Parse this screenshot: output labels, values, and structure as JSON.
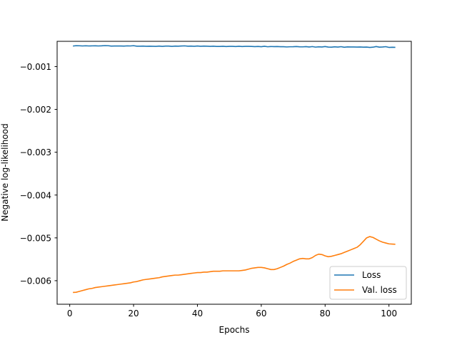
{
  "chart_data": {
    "type": "line",
    "title": "",
    "xlabel": "Epochs",
    "ylabel": "Negative log-likelihood",
    "xlim": [
      -3.95,
      107.0
    ],
    "ylim": [
      -0.00655,
      -0.00041
    ],
    "xticks": [
      0,
      20,
      40,
      60,
      80,
      100
    ],
    "xtick_labels": [
      "0",
      "20",
      "40",
      "60",
      "80",
      "100"
    ],
    "yticks": [
      -0.001,
      -0.002,
      -0.003,
      -0.004,
      -0.005,
      -0.006
    ],
    "ytick_labels": [
      "−0.001",
      "−0.002",
      "−0.003",
      "−0.004",
      "−0.005",
      "−0.006"
    ],
    "grid": false,
    "legend_position": "lower-right",
    "series": [
      {
        "name": "Loss",
        "color": "#1f77b4",
        "x": [
          1,
          2,
          3,
          4,
          5,
          6,
          7,
          8,
          9,
          10,
          11,
          12,
          13,
          14,
          15,
          16,
          17,
          18,
          19,
          20,
          21,
          22,
          23,
          24,
          25,
          26,
          27,
          28,
          29,
          30,
          31,
          32,
          33,
          34,
          35,
          36,
          37,
          38,
          39,
          40,
          41,
          42,
          43,
          44,
          45,
          46,
          47,
          48,
          49,
          50,
          51,
          52,
          53,
          54,
          55,
          56,
          57,
          58,
          59,
          60,
          61,
          62,
          63,
          64,
          65,
          66,
          67,
          68,
          69,
          70,
          71,
          72,
          73,
          74,
          75,
          76,
          77,
          78,
          79,
          80,
          81,
          82,
          83,
          84,
          85,
          86,
          87,
          88,
          89,
          90,
          91,
          92,
          93,
          94,
          95,
          96,
          97,
          98,
          99,
          100,
          101,
          102
        ],
        "y": [
          -0.00052,
          -0.000512,
          -0.000514,
          -0.000518,
          -0.000514,
          -0.000518,
          -0.000516,
          -0.000515,
          -0.000518,
          -0.000515,
          -0.00051,
          -0.000512,
          -0.000522,
          -0.00052,
          -0.000518,
          -0.00052,
          -0.000522,
          -0.000516,
          -0.000518,
          -0.000512,
          -0.000524,
          -0.000524,
          -0.000522,
          -0.000526,
          -0.000524,
          -0.000525,
          -0.000528,
          -0.000522,
          -0.000527,
          -0.000522,
          -0.000522,
          -0.000528,
          -0.000522,
          -0.000524,
          -0.00052,
          -0.000516,
          -0.000524,
          -0.000522,
          -0.000525,
          -0.00052,
          -0.000525,
          -0.000522,
          -0.000524,
          -0.000528,
          -0.000523,
          -0.000529,
          -0.00053,
          -0.000526,
          -0.000532,
          -0.000527,
          -0.000527,
          -0.000532,
          -0.000526,
          -0.000532,
          -0.000528,
          -0.000527,
          -0.000529,
          -0.000533,
          -0.000529,
          -0.000536,
          -0.000526,
          -0.000537,
          -0.000532,
          -0.000533,
          -0.000532,
          -0.000536,
          -0.000536,
          -0.000541,
          -0.000537,
          -0.000536,
          -0.000532,
          -0.000538,
          -0.000539,
          -0.000534,
          -0.000542,
          -0.000533,
          -0.000545,
          -0.000538,
          -0.000542,
          -0.000532,
          -0.000544,
          -0.000546,
          -0.000538,
          -0.000544,
          -0.000535,
          -0.000548,
          -0.00054,
          -0.000542,
          -0.000542,
          -0.000544,
          -0.000542,
          -0.000547,
          -0.000544,
          -0.000552,
          -0.000547,
          -0.000532,
          -0.000546,
          -0.000542,
          -0.000535,
          -0.000552,
          -0.000549,
          -0.00055
        ]
      },
      {
        "name": "Val. loss",
        "color": "#ff7f0e",
        "x": [
          1,
          2,
          3,
          4,
          5,
          6,
          7,
          8,
          9,
          10,
          11,
          12,
          13,
          14,
          15,
          16,
          17,
          18,
          19,
          20,
          21,
          22,
          23,
          24,
          25,
          26,
          27,
          28,
          29,
          30,
          31,
          32,
          33,
          34,
          35,
          36,
          37,
          38,
          39,
          40,
          41,
          42,
          43,
          44,
          45,
          46,
          47,
          48,
          49,
          50,
          51,
          52,
          53,
          54,
          55,
          56,
          57,
          58,
          59,
          60,
          61,
          62,
          63,
          64,
          65,
          66,
          67,
          68,
          69,
          70,
          71,
          72,
          73,
          74,
          75,
          76,
          77,
          78,
          79,
          80,
          81,
          82,
          83,
          84,
          85,
          86,
          87,
          88,
          89,
          90,
          91,
          92,
          93,
          94,
          95,
          96,
          97,
          98,
          99,
          100,
          101,
          102
        ],
        "y": [
          -0.006275,
          -0.00627,
          -0.00625,
          -0.00623,
          -0.00621,
          -0.00619,
          -0.00618,
          -0.00616,
          -0.00615,
          -0.00614,
          -0.00613,
          -0.00612,
          -0.00611,
          -0.0061,
          -0.00609,
          -0.00608,
          -0.00607,
          -0.00606,
          -0.00605,
          -0.00603,
          -0.00602,
          -0.006,
          -0.00598,
          -0.00597,
          -0.00596,
          -0.00595,
          -0.00594,
          -0.00593,
          -0.00591,
          -0.0059,
          -0.00589,
          -0.00588,
          -0.00587,
          -0.00587,
          -0.00586,
          -0.00585,
          -0.00584,
          -0.00583,
          -0.00582,
          -0.00581,
          -0.00581,
          -0.0058,
          -0.0058,
          -0.00579,
          -0.00578,
          -0.00578,
          -0.00578,
          -0.00577,
          -0.00577,
          -0.00577,
          -0.00577,
          -0.00577,
          -0.00577,
          -0.00576,
          -0.00575,
          -0.00573,
          -0.00571,
          -0.0057,
          -0.00569,
          -0.00569,
          -0.0057,
          -0.00572,
          -0.00574,
          -0.00574,
          -0.00572,
          -0.00569,
          -0.00566,
          -0.00562,
          -0.00559,
          -0.00555,
          -0.00552,
          -0.00549,
          -0.00548,
          -0.00549,
          -0.00549,
          -0.00546,
          -0.00541,
          -0.00538,
          -0.00539,
          -0.00542,
          -0.00544,
          -0.00543,
          -0.00541,
          -0.00539,
          -0.00537,
          -0.00534,
          -0.00531,
          -0.00528,
          -0.00525,
          -0.00522,
          -0.00516,
          -0.00508,
          -0.005,
          -0.00497,
          -0.00499,
          -0.00503,
          -0.00507,
          -0.0051,
          -0.00512,
          -0.00514,
          -0.005145,
          -0.00515
        ]
      }
    ]
  }
}
